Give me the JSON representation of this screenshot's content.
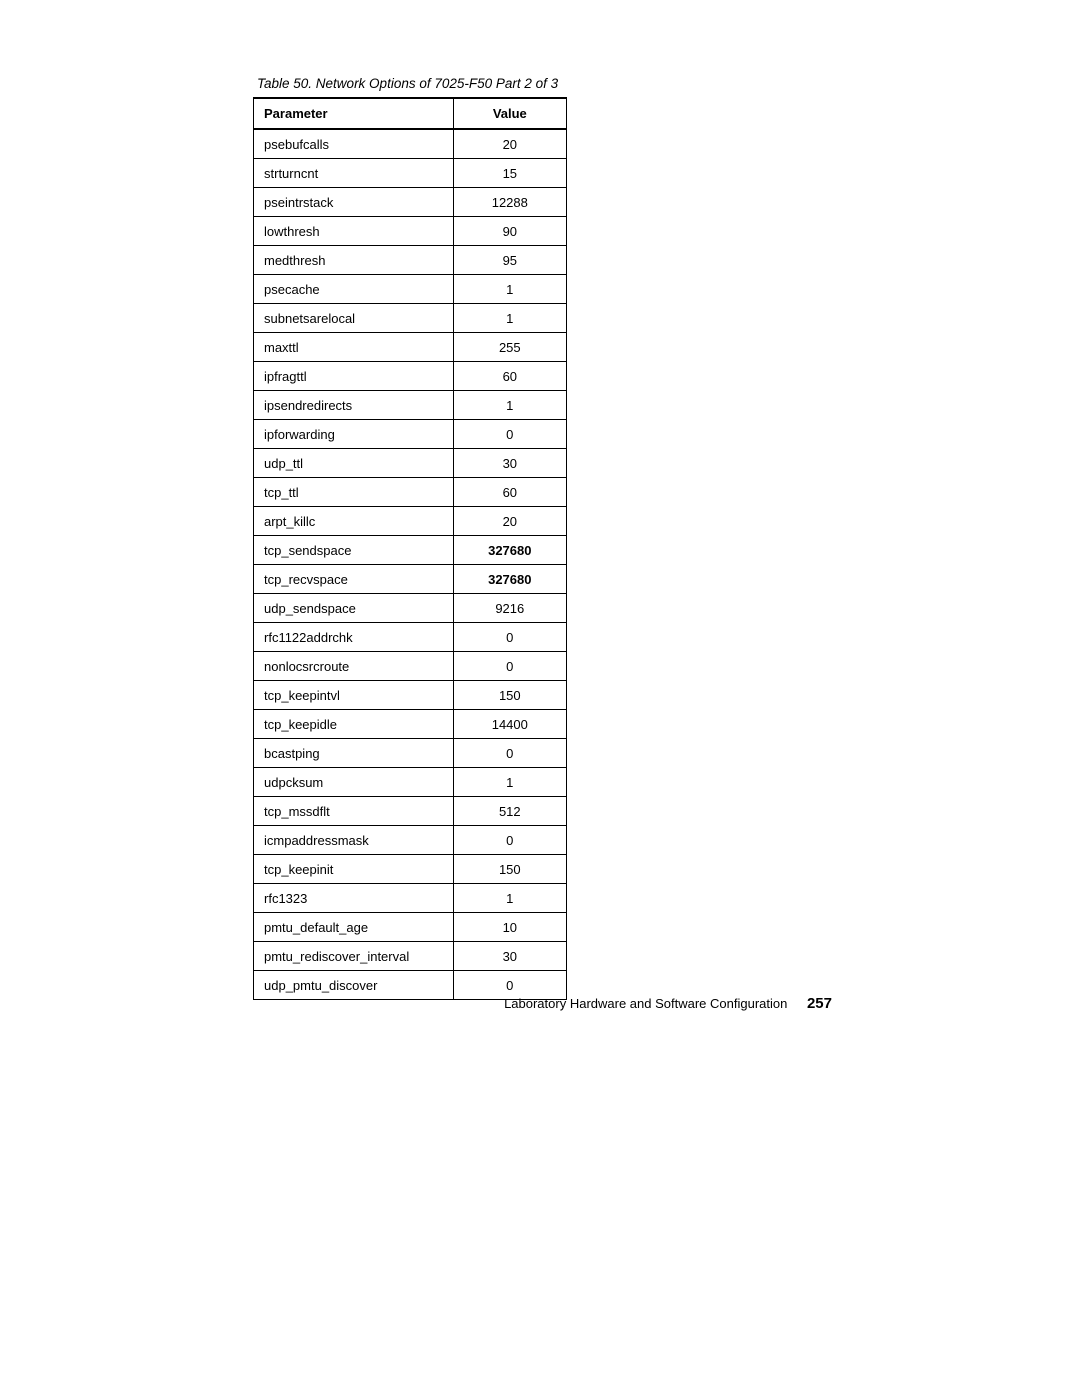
{
  "caption": "Table 50.  Network Options of 7025-F50 Part 2 of 3",
  "columns": [
    "Parameter",
    "Value"
  ],
  "rows": [
    {
      "param": "psebufcalls",
      "value": "20",
      "bold": false
    },
    {
      "param": "strturncnt",
      "value": "15",
      "bold": false
    },
    {
      "param": "pseintrstack",
      "value": "12288",
      "bold": false
    },
    {
      "param": "lowthresh",
      "value": "90",
      "bold": false
    },
    {
      "param": "medthresh",
      "value": "95",
      "bold": false
    },
    {
      "param": "psecache",
      "value": "1",
      "bold": false
    },
    {
      "param": "subnetsarelocal",
      "value": "1",
      "bold": false
    },
    {
      "param": "maxttl",
      "value": "255",
      "bold": false
    },
    {
      "param": "ipfragttl",
      "value": "60",
      "bold": false
    },
    {
      "param": "ipsendredirects",
      "value": "1",
      "bold": false
    },
    {
      "param": "ipforwarding",
      "value": "0",
      "bold": false
    },
    {
      "param": "udp_ttl",
      "value": "30",
      "bold": false
    },
    {
      "param": "tcp_ttl",
      "value": "60",
      "bold": false
    },
    {
      "param": "arpt_killc",
      "value": "20",
      "bold": false
    },
    {
      "param": "tcp_sendspace",
      "value": "327680",
      "bold": true
    },
    {
      "param": "tcp_recvspace",
      "value": "327680",
      "bold": true
    },
    {
      "param": "udp_sendspace",
      "value": "9216",
      "bold": false
    },
    {
      "param": "rfc1122addrchk",
      "value": "0",
      "bold": false
    },
    {
      "param": "nonlocsrcroute",
      "value": "0",
      "bold": false
    },
    {
      "param": "tcp_keepintvl",
      "value": "150",
      "bold": false
    },
    {
      "param": "tcp_keepidle",
      "value": "14400",
      "bold": false
    },
    {
      "param": "bcastping",
      "value": "0",
      "bold": false
    },
    {
      "param": "udpcksum",
      "value": "1",
      "bold": false
    },
    {
      "param": "tcp_mssdflt",
      "value": "512",
      "bold": false
    },
    {
      "param": "icmpaddressmask",
      "value": "0",
      "bold": false
    },
    {
      "param": "tcp_keepinit",
      "value": "150",
      "bold": false
    },
    {
      "param": "rfc1323",
      "value": "1",
      "bold": false
    },
    {
      "param": "pmtu_default_age",
      "value": "10",
      "bold": false
    },
    {
      "param": "pmtu_rediscover_interval",
      "value": "30",
      "bold": false
    },
    {
      "param": "udp_pmtu_discover",
      "value": "0",
      "bold": false
    }
  ],
  "footer": {
    "text": "Laboratory Hardware and Software Configuration",
    "page": "257"
  }
}
